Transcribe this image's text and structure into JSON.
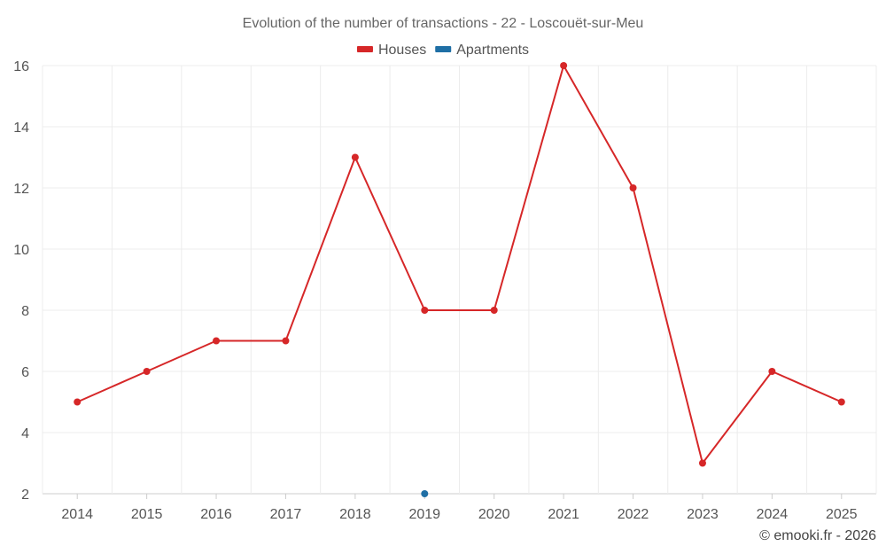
{
  "chart_data": {
    "type": "line",
    "title": "Evolution of the number of transactions - 22 - Loscouët-sur-Meu",
    "categories": [
      "2014",
      "2015",
      "2016",
      "2017",
      "2018",
      "2019",
      "2020",
      "2021",
      "2022",
      "2023",
      "2024",
      "2025"
    ],
    "series": [
      {
        "name": "Houses",
        "color": "#d62728",
        "values": [
          5,
          6,
          7,
          7,
          13,
          8,
          8,
          16,
          12,
          3,
          6,
          5
        ]
      },
      {
        "name": "Apartments",
        "color": "#1f6fa5",
        "values": [
          null,
          null,
          null,
          null,
          null,
          2,
          null,
          null,
          null,
          null,
          null,
          null
        ]
      }
    ],
    "ylim": [
      2,
      16
    ],
    "yticks": [
      2,
      4,
      6,
      8,
      10,
      12,
      14,
      16
    ],
    "xlabel": "",
    "ylabel": "",
    "grid": true,
    "legend_position": "top-center"
  },
  "credit": "© emooki.fr - 2026"
}
